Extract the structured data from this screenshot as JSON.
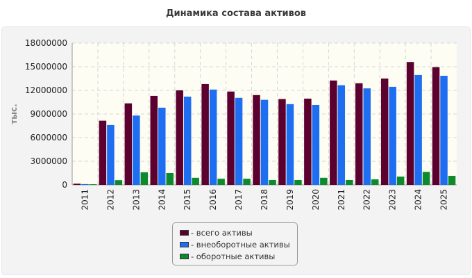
{
  "colors": {
    "series": [
      "#5c0030",
      "#1e6ef2",
      "#0e8a2e"
    ],
    "plot_background": "#fdfdf3",
    "grid": "#d6d6d6"
  },
  "chart_data": {
    "type": "bar",
    "title": "Динамика состава активов",
    "ylabel": "тыс.",
    "xlabel": "",
    "ylim": [
      0,
      18000000
    ],
    "yticks": [
      "18000000",
      "15000000",
      "12000000",
      "9000000",
      "6000000",
      "3000000",
      "0"
    ],
    "grid": true,
    "legend_position": "bottom",
    "categories": [
      "2011",
      "2012",
      "2013",
      "2014",
      "2015",
      "2016",
      "2017",
      "2018",
      "2019",
      "2020",
      "2021",
      "2022",
      "2023",
      "2024",
      "2025"
    ],
    "series": [
      {
        "name": "- всего активы",
        "values": [
          150000,
          8150000,
          10350000,
          11300000,
          12000000,
          12800000,
          11850000,
          11400000,
          10900000,
          10950000,
          13250000,
          12900000,
          13500000,
          15600000,
          14950000
        ]
      },
      {
        "name": "- внеоборотные активы",
        "values": [
          100000,
          7600000,
          8800000,
          9800000,
          11200000,
          12100000,
          11050000,
          10800000,
          10250000,
          10150000,
          12650000,
          12250000,
          12450000,
          13950000,
          13850000
        ]
      },
      {
        "name": "- оборотные активы",
        "values": [
          80000,
          600000,
          1600000,
          1500000,
          900000,
          780000,
          780000,
          620000,
          620000,
          900000,
          620000,
          700000,
          1050000,
          1650000,
          1150000
        ]
      }
    ]
  }
}
